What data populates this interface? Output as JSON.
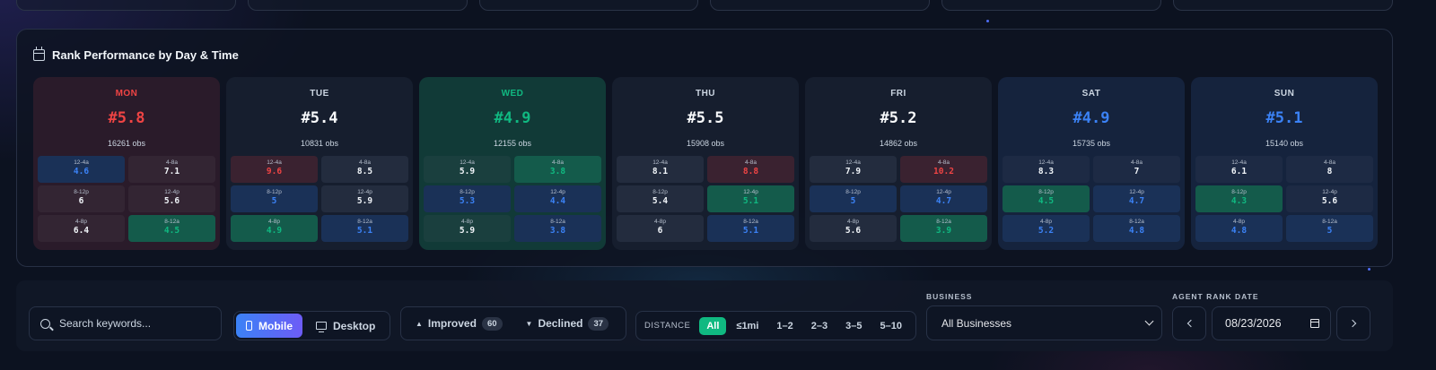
{
  "panel": {
    "title": "Rank Performance by Day & Time"
  },
  "days": [
    {
      "name": "MON",
      "rank": "#5.8",
      "obs": "16261 obs",
      "tone": "red",
      "slots": [
        {
          "label": "12-4a",
          "value": "4.6",
          "tone": "blue"
        },
        {
          "label": "4-8a",
          "value": "7.1",
          "tone": "neutral"
        },
        {
          "label": "8-12p",
          "value": "6",
          "tone": "neutral"
        },
        {
          "label": "12-4p",
          "value": "5.6",
          "tone": "neutral"
        },
        {
          "label": "4-8p",
          "value": "6.4",
          "tone": "neutral"
        },
        {
          "label": "8-12a",
          "value": "4.5",
          "tone": "green"
        }
      ]
    },
    {
      "name": "TUE",
      "rank": "#5.4",
      "obs": "10831 obs",
      "tone": "neutral",
      "slots": [
        {
          "label": "12-4a",
          "value": "9.6",
          "tone": "red"
        },
        {
          "label": "4-8a",
          "value": "8.5",
          "tone": "neutral"
        },
        {
          "label": "8-12p",
          "value": "5",
          "tone": "blue"
        },
        {
          "label": "12-4p",
          "value": "5.9",
          "tone": "neutral"
        },
        {
          "label": "4-8p",
          "value": "4.9",
          "tone": "green"
        },
        {
          "label": "8-12a",
          "value": "5.1",
          "tone": "blue"
        }
      ]
    },
    {
      "name": "WED",
      "rank": "#4.9",
      "obs": "12155 obs",
      "tone": "green",
      "slots": [
        {
          "label": "12-4a",
          "value": "5.9",
          "tone": "neutral"
        },
        {
          "label": "4-8a",
          "value": "3.8",
          "tone": "green"
        },
        {
          "label": "8-12p",
          "value": "5.3",
          "tone": "blue"
        },
        {
          "label": "12-4p",
          "value": "4.4",
          "tone": "blue"
        },
        {
          "label": "4-8p",
          "value": "5.9",
          "tone": "neutral"
        },
        {
          "label": "8-12a",
          "value": "3.8",
          "tone": "blue"
        }
      ]
    },
    {
      "name": "THU",
      "rank": "#5.5",
      "obs": "15908 obs",
      "tone": "neutral",
      "slots": [
        {
          "label": "12-4a",
          "value": "8.1",
          "tone": "neutral"
        },
        {
          "label": "4-8a",
          "value": "8.8",
          "tone": "red"
        },
        {
          "label": "8-12p",
          "value": "5.4",
          "tone": "neutral"
        },
        {
          "label": "12-4p",
          "value": "5.1",
          "tone": "green"
        },
        {
          "label": "4-8p",
          "value": "6",
          "tone": "neutral"
        },
        {
          "label": "8-12a",
          "value": "5.1",
          "tone": "blue"
        }
      ]
    },
    {
      "name": "FRI",
      "rank": "#5.2",
      "obs": "14862 obs",
      "tone": "neutral",
      "slots": [
        {
          "label": "12-4a",
          "value": "7.9",
          "tone": "neutral"
        },
        {
          "label": "4-8a",
          "value": "10.2",
          "tone": "red"
        },
        {
          "label": "8-12p",
          "value": "5",
          "tone": "blue"
        },
        {
          "label": "12-4p",
          "value": "4.7",
          "tone": "blue"
        },
        {
          "label": "4-8p",
          "value": "5.6",
          "tone": "neutral"
        },
        {
          "label": "8-12a",
          "value": "3.9",
          "tone": "green"
        }
      ]
    },
    {
      "name": "SAT",
      "rank": "#4.9",
      "obs": "15735 obs",
      "tone": "blue",
      "slots": [
        {
          "label": "12-4a",
          "value": "8.3",
          "tone": "neutral"
        },
        {
          "label": "4-8a",
          "value": "7",
          "tone": "neutral"
        },
        {
          "label": "8-12p",
          "value": "4.5",
          "tone": "green"
        },
        {
          "label": "12-4p",
          "value": "4.7",
          "tone": "blue"
        },
        {
          "label": "4-8p",
          "value": "5.2",
          "tone": "blue"
        },
        {
          "label": "8-12a",
          "value": "4.8",
          "tone": "blue"
        }
      ]
    },
    {
      "name": "SUN",
      "rank": "#5.1",
      "obs": "15140 obs",
      "tone": "blue",
      "slots": [
        {
          "label": "12-4a",
          "value": "6.1",
          "tone": "neutral"
        },
        {
          "label": "4-8a",
          "value": "8",
          "tone": "neutral"
        },
        {
          "label": "8-12p",
          "value": "4.3",
          "tone": "green"
        },
        {
          "label": "12-4p",
          "value": "5.6",
          "tone": "neutral"
        },
        {
          "label": "4-8p",
          "value": "4.8",
          "tone": "blue"
        },
        {
          "label": "8-12a",
          "value": "5",
          "tone": "blue"
        }
      ]
    }
  ],
  "filters": {
    "search": {
      "placeholder": "Search keywords...",
      "value": ""
    },
    "device": {
      "mobile_label": "Mobile",
      "desktop_label": "Desktop",
      "selected": "Mobile"
    },
    "trend": {
      "improved_label": "Improved",
      "improved_count": "60",
      "declined_label": "Declined",
      "declined_count": "37"
    },
    "distance": {
      "label": "DISTANCE",
      "options": [
        "All",
        "≤1mi",
        "1–2",
        "2–3",
        "3–5",
        "5–10"
      ],
      "selected": "All"
    },
    "business": {
      "label": "BUSINESS",
      "value": "All Businesses"
    },
    "agent_rank_date": {
      "label": "AGENT RANK DATE",
      "value": "08/23/2026"
    }
  },
  "colors": {
    "red": "#ef4444",
    "green": "#10b981",
    "blue": "#3b82f6",
    "accent_gradient_start": "#3b82f6",
    "accent_gradient_end": "#6d5cf6"
  },
  "icons": {
    "panel": "calendar-icon",
    "search": "search-icon",
    "mobile": "phone-icon",
    "desktop": "monitor-icon",
    "improved": "triangle-up-icon",
    "declined": "triangle-down-icon",
    "business": "chevron-down-icon",
    "date": "calendar-icon",
    "prev": "chevron-left-icon",
    "next": "chevron-right-icon"
  }
}
